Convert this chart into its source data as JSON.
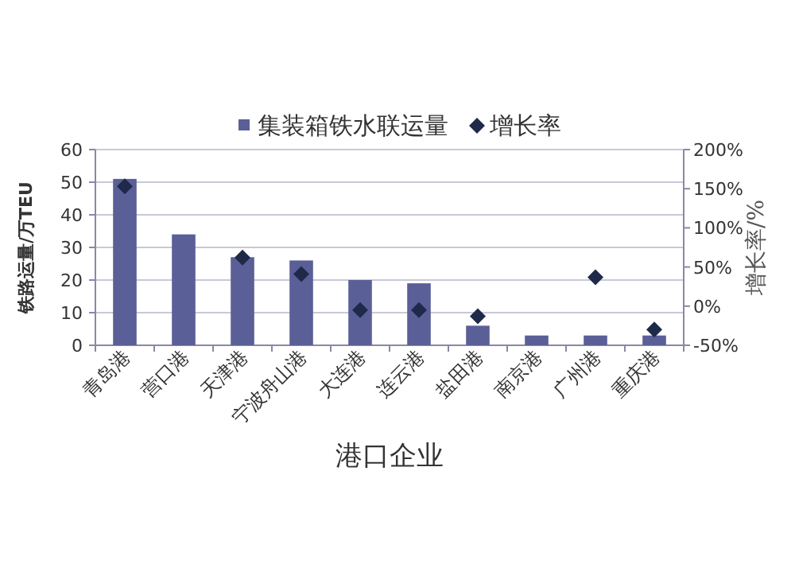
{
  "chart_data": {
    "type": "bar",
    "categories": [
      "青岛港",
      "营口港",
      "天津港",
      "宁波舟山港",
      "大连港",
      "连云港",
      "盐田港",
      "南京港",
      "广州港",
      "重庆港"
    ],
    "series": [
      {
        "name": "集装箱铁水联运量",
        "color": "#5b5f97",
        "values": [
          51,
          34,
          27,
          26,
          20,
          19,
          6,
          3,
          3,
          3
        ]
      },
      {
        "name": "增长率",
        "type": "scatter",
        "axis": "y2",
        "color": "#1f2a4a",
        "marker": "diamond",
        "values": [
          153,
          null,
          62,
          41,
          -5,
          -5,
          -13,
          null,
          37,
          -30
        ]
      }
    ],
    "xlabel": "港口企业",
    "ylabel": "铁路运量/万TEU",
    "y2label": "增长率/%",
    "ylim": [
      0,
      60
    ],
    "yticks": [
      0,
      10,
      20,
      30,
      40,
      50,
      60
    ],
    "y2lim": [
      -50,
      200
    ],
    "y2ticks": [
      {
        "value": -50,
        "label": "-50%"
      },
      {
        "value": 0,
        "label": "0%"
      },
      {
        "value": 50,
        "label": "50%"
      },
      {
        "value": 100,
        "label": "100%"
      },
      {
        "value": 150,
        "label": "150%"
      },
      {
        "value": 200,
        "label": "200%"
      }
    ],
    "grid": "y",
    "legend": "top"
  }
}
